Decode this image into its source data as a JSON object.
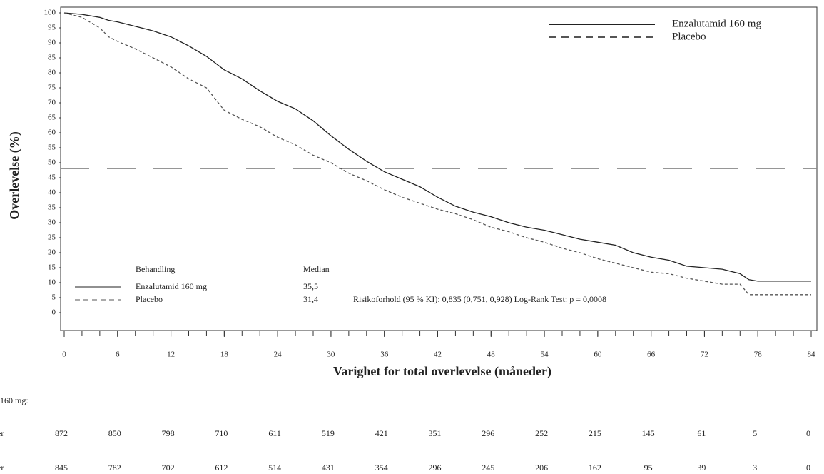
{
  "chart_data": {
    "type": "line",
    "ylabel": "Overlevelse (%)",
    "xlabel": "Varighet for total overlevelse (måneder)",
    "x": [
      0,
      2,
      4,
      5,
      6,
      8,
      10,
      12,
      14,
      16,
      18,
      20,
      22,
      24,
      26,
      28,
      30,
      32,
      34,
      36,
      38,
      40,
      42,
      44,
      46,
      48,
      50,
      52,
      54,
      56,
      58,
      60,
      62,
      64,
      66,
      68,
      70,
      72,
      74,
      76,
      77,
      78,
      84
    ],
    "series": [
      {
        "name": "Enzalutamid 160 mg",
        "color": "#222222",
        "dashed": false,
        "values": [
          100,
          99.5,
          98.5,
          97.5,
          97,
          95.5,
          94,
          92,
          89,
          85.5,
          81,
          78,
          74,
          70.5,
          68,
          64,
          59,
          54.5,
          50.5,
          47,
          44.5,
          42,
          38.5,
          35.5,
          33.5,
          32,
          30,
          28.5,
          27.5,
          26,
          24.5,
          23.5,
          22.5,
          20,
          18.5,
          17.5,
          15.5,
          15,
          14.5,
          13,
          11,
          10.5,
          10.5
        ]
      },
      {
        "name": "Placebo",
        "color": "#555555",
        "dashed": true,
        "values": [
          100,
          98.5,
          95,
          92,
          90.5,
          88,
          85,
          82,
          78,
          75,
          67.5,
          64.5,
          62,
          58.5,
          56,
          52.5,
          50,
          46.5,
          44,
          41,
          38.5,
          36.5,
          34.5,
          33,
          31,
          28.5,
          27,
          25,
          23.5,
          21.5,
          20,
          18,
          16.5,
          15,
          13.5,
          13,
          11.5,
          10.5,
          9.5,
          9.5,
          6,
          6,
          6
        ]
      }
    ],
    "xlim": [
      0,
      84
    ],
    "ylim": [
      0,
      100
    ],
    "xticks": [
      0,
      6,
      12,
      18,
      24,
      30,
      36,
      42,
      48,
      54,
      60,
      66,
      72,
      78,
      84
    ],
    "yticks": [
      0,
      5,
      10,
      15,
      20,
      25,
      30,
      35,
      40,
      45,
      50,
      55,
      60,
      65,
      70,
      75,
      80,
      85,
      90,
      95,
      100
    ],
    "minor_tick_step": 2,
    "reference_line": 48,
    "legend": "top-right",
    "annotation": {
      "header": [
        "Behandling",
        "Median"
      ],
      "rows": [
        [
          "Enzalutamid 160 mg",
          "35,5"
        ],
        [
          "Placebo",
          "31,4"
        ]
      ],
      "note": "Risikoforhold (95 % KI): 0,835 (0,751, 0,928) Log-Rank Test: p = 0,0008"
    },
    "risk_table": {
      "title": "160 mg:",
      "rows": [
        {
          "label": "er",
          "values": [
            872,
            850,
            798,
            710,
            611,
            519,
            421,
            351,
            296,
            252,
            215,
            145,
            61,
            5,
            0
          ]
        },
        {
          "label": "er",
          "values": [
            845,
            782,
            702,
            612,
            514,
            431,
            354,
            296,
            245,
            206,
            162,
            95,
            39,
            3,
            0
          ]
        }
      ]
    }
  }
}
